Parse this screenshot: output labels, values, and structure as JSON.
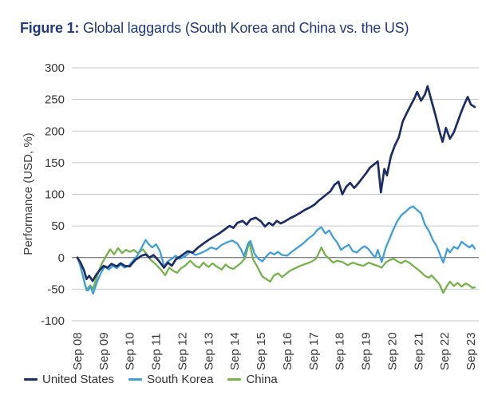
{
  "title": {
    "prefix": "Figure 1:",
    "text": "Global laggards (South Korea and China vs. the US)"
  },
  "chart_data": {
    "type": "line",
    "title": "Global laggards (South Korea and China vs. the US)",
    "xlabel": "",
    "ylabel": "Performance (USD, %)",
    "ylim": [
      -100,
      300
    ],
    "yticks": [
      300,
      250,
      200,
      150,
      100,
      50,
      0,
      -50,
      -100
    ],
    "grid": true,
    "zero_line": true,
    "legend_position": "bottom-left",
    "x_tick_rotation": 90,
    "x_unit": "years since Sep 2008",
    "categories": [
      "Sep 08",
      "Sep 09",
      "Sep 10",
      "Sep 11",
      "Sep 12",
      "Sep 13",
      "Sep 14",
      "Sep 15",
      "Sep 16",
      "Sep 17",
      "Sep 18",
      "Sep 19",
      "Sep 20",
      "Sep 21",
      "Sep 22",
      "Sep 23"
    ],
    "colors": {
      "grid": "#c3c8cd",
      "zero_line": "#53585d",
      "title": "#21397f",
      "tick_text": "#363636"
    },
    "series": [
      {
        "name": "United States",
        "color": "#1b2c67",
        "width": 2.7,
        "points": [
          [
            0,
            0
          ],
          [
            0.12,
            -8
          ],
          [
            0.25,
            -20
          ],
          [
            0.35,
            -34
          ],
          [
            0.45,
            -29
          ],
          [
            0.58,
            -37
          ],
          [
            0.72,
            -27
          ],
          [
            0.85,
            -20
          ],
          [
            1.0,
            -13
          ],
          [
            1.15,
            -16
          ],
          [
            1.3,
            -10
          ],
          [
            1.5,
            -14
          ],
          [
            1.65,
            -9
          ],
          [
            1.8,
            -13
          ],
          [
            2.0,
            -14
          ],
          [
            2.2,
            -4
          ],
          [
            2.45,
            3
          ],
          [
            2.6,
            5
          ],
          [
            2.75,
            0
          ],
          [
            2.9,
            4
          ],
          [
            3.1,
            -5
          ],
          [
            3.3,
            -16
          ],
          [
            3.45,
            -8
          ],
          [
            3.6,
            -13
          ],
          [
            3.75,
            -3
          ],
          [
            4.0,
            4
          ],
          [
            4.2,
            10
          ],
          [
            4.4,
            8
          ],
          [
            4.6,
            16
          ],
          [
            4.8,
            22
          ],
          [
            5.0,
            28
          ],
          [
            5.2,
            33
          ],
          [
            5.4,
            38
          ],
          [
            5.6,
            44
          ],
          [
            5.8,
            50
          ],
          [
            5.95,
            47
          ],
          [
            6.1,
            55
          ],
          [
            6.3,
            58
          ],
          [
            6.45,
            52
          ],
          [
            6.6,
            60
          ],
          [
            6.8,
            63
          ],
          [
            7.0,
            57
          ],
          [
            7.15,
            49
          ],
          [
            7.3,
            55
          ],
          [
            7.45,
            51
          ],
          [
            7.6,
            58
          ],
          [
            7.75,
            54
          ],
          [
            7.9,
            57
          ],
          [
            8.1,
            62
          ],
          [
            8.3,
            66
          ],
          [
            8.5,
            71
          ],
          [
            8.7,
            76
          ],
          [
            8.9,
            80
          ],
          [
            9.05,
            84
          ],
          [
            9.2,
            90
          ],
          [
            9.35,
            95
          ],
          [
            9.5,
            100
          ],
          [
            9.65,
            105
          ],
          [
            9.8,
            115
          ],
          [
            9.95,
            120
          ],
          [
            10.1,
            100
          ],
          [
            10.25,
            112
          ],
          [
            10.4,
            118
          ],
          [
            10.55,
            110
          ],
          [
            10.7,
            117
          ],
          [
            10.85,
            125
          ],
          [
            11.0,
            133
          ],
          [
            11.15,
            142
          ],
          [
            11.3,
            147
          ],
          [
            11.45,
            152
          ],
          [
            11.57,
            103
          ],
          [
            11.7,
            140
          ],
          [
            11.8,
            130
          ],
          [
            11.95,
            160
          ],
          [
            12.1,
            177
          ],
          [
            12.25,
            190
          ],
          [
            12.4,
            215
          ],
          [
            12.55,
            228
          ],
          [
            12.7,
            240
          ],
          [
            12.85,
            252
          ],
          [
            12.95,
            262
          ],
          [
            13.1,
            248
          ],
          [
            13.25,
            258
          ],
          [
            13.35,
            271
          ],
          [
            13.5,
            248
          ],
          [
            13.65,
            225
          ],
          [
            13.8,
            200
          ],
          [
            13.92,
            183
          ],
          [
            14.05,
            205
          ],
          [
            14.2,
            188
          ],
          [
            14.35,
            198
          ],
          [
            14.5,
            215
          ],
          [
            14.65,
            232
          ],
          [
            14.78,
            245
          ],
          [
            14.88,
            254
          ],
          [
            15.0,
            242
          ],
          [
            15.15,
            238
          ]
        ]
      },
      {
        "name": "South Korea",
        "color": "#3f9fdb",
        "width": 2.3,
        "points": [
          [
            0,
            0
          ],
          [
            0.1,
            -10
          ],
          [
            0.2,
            -28
          ],
          [
            0.3,
            -45
          ],
          [
            0.4,
            -52
          ],
          [
            0.5,
            -46
          ],
          [
            0.6,
            -57
          ],
          [
            0.75,
            -38
          ],
          [
            0.9,
            -24
          ],
          [
            1.05,
            -14
          ],
          [
            1.2,
            -19
          ],
          [
            1.35,
            -13
          ],
          [
            1.5,
            -17
          ],
          [
            1.65,
            -11
          ],
          [
            1.8,
            -16
          ],
          [
            1.95,
            -13
          ],
          [
            2.1,
            -6
          ],
          [
            2.3,
            4
          ],
          [
            2.5,
            20
          ],
          [
            2.6,
            28
          ],
          [
            2.7,
            22
          ],
          [
            2.85,
            16
          ],
          [
            3.0,
            21
          ],
          [
            3.15,
            10
          ],
          [
            3.3,
            -13
          ],
          [
            3.45,
            -6
          ],
          [
            3.6,
            -2
          ],
          [
            3.75,
            3
          ],
          [
            3.9,
            -2
          ],
          [
            4.1,
            2
          ],
          [
            4.3,
            9
          ],
          [
            4.5,
            4
          ],
          [
            4.7,
            7
          ],
          [
            4.9,
            11
          ],
          [
            5.1,
            16
          ],
          [
            5.3,
            13
          ],
          [
            5.5,
            20
          ],
          [
            5.7,
            24
          ],
          [
            5.9,
            27
          ],
          [
            6.1,
            22
          ],
          [
            6.25,
            12
          ],
          [
            6.35,
            2
          ],
          [
            6.5,
            22
          ],
          [
            6.6,
            26
          ],
          [
            6.75,
            6
          ],
          [
            6.9,
            -2
          ],
          [
            7.05,
            -6
          ],
          [
            7.2,
            2
          ],
          [
            7.35,
            8
          ],
          [
            7.5,
            5
          ],
          [
            7.65,
            9
          ],
          [
            7.8,
            4
          ],
          [
            8.0,
            3
          ],
          [
            8.2,
            10
          ],
          [
            8.4,
            16
          ],
          [
            8.6,
            22
          ],
          [
            8.8,
            30
          ],
          [
            9.0,
            36
          ],
          [
            9.15,
            44
          ],
          [
            9.3,
            48
          ],
          [
            9.45,
            38
          ],
          [
            9.6,
            43
          ],
          [
            9.75,
            32
          ],
          [
            9.9,
            24
          ],
          [
            10.05,
            12
          ],
          [
            10.2,
            17
          ],
          [
            10.35,
            20
          ],
          [
            10.5,
            10
          ],
          [
            10.65,
            8
          ],
          [
            10.8,
            14
          ],
          [
            10.95,
            18
          ],
          [
            11.1,
            13
          ],
          [
            11.25,
            5
          ],
          [
            11.35,
            0
          ],
          [
            11.45,
            12
          ],
          [
            11.6,
            -7
          ],
          [
            11.75,
            15
          ],
          [
            11.9,
            30
          ],
          [
            12.05,
            45
          ],
          [
            12.2,
            58
          ],
          [
            12.35,
            67
          ],
          [
            12.5,
            72
          ],
          [
            12.65,
            78
          ],
          [
            12.8,
            81
          ],
          [
            12.95,
            75
          ],
          [
            13.1,
            70
          ],
          [
            13.25,
            52
          ],
          [
            13.4,
            42
          ],
          [
            13.55,
            28
          ],
          [
            13.7,
            18
          ],
          [
            13.85,
            2
          ],
          [
            13.95,
            -8
          ],
          [
            14.1,
            14
          ],
          [
            14.2,
            8
          ],
          [
            14.35,
            17
          ],
          [
            14.5,
            14
          ],
          [
            14.65,
            25
          ],
          [
            14.8,
            20
          ],
          [
            14.95,
            16
          ],
          [
            15.05,
            20
          ],
          [
            15.15,
            14
          ]
        ]
      },
      {
        "name": "China",
        "color": "#76b24a",
        "width": 2.3,
        "points": [
          [
            0,
            0
          ],
          [
            0.1,
            -12
          ],
          [
            0.22,
            -30
          ],
          [
            0.35,
            -52
          ],
          [
            0.48,
            -44
          ],
          [
            0.6,
            -49
          ],
          [
            0.72,
            -33
          ],
          [
            0.85,
            -18
          ],
          [
            0.95,
            -8
          ],
          [
            1.1,
            3
          ],
          [
            1.25,
            13
          ],
          [
            1.4,
            5
          ],
          [
            1.55,
            15
          ],
          [
            1.7,
            7
          ],
          [
            1.85,
            12
          ],
          [
            2.0,
            9
          ],
          [
            2.15,
            12
          ],
          [
            2.3,
            7
          ],
          [
            2.5,
            13
          ],
          [
            2.65,
            5
          ],
          [
            2.8,
            -4
          ],
          [
            3.0,
            -11
          ],
          [
            3.2,
            -20
          ],
          [
            3.35,
            -28
          ],
          [
            3.5,
            -16
          ],
          [
            3.65,
            -21
          ],
          [
            3.8,
            -24
          ],
          [
            3.95,
            -17
          ],
          [
            4.1,
            -13
          ],
          [
            4.3,
            -5
          ],
          [
            4.5,
            -13
          ],
          [
            4.65,
            -16
          ],
          [
            4.8,
            -8
          ],
          [
            5.0,
            -15
          ],
          [
            5.15,
            -9
          ],
          [
            5.3,
            -14
          ],
          [
            5.5,
            -19
          ],
          [
            5.65,
            -11
          ],
          [
            5.8,
            -16
          ],
          [
            5.95,
            -18
          ],
          [
            6.1,
            -13
          ],
          [
            6.25,
            -8
          ],
          [
            6.4,
            0
          ],
          [
            6.55,
            25
          ],
          [
            6.7,
            -3
          ],
          [
            6.85,
            -14
          ],
          [
            7.05,
            -30
          ],
          [
            7.2,
            -34
          ],
          [
            7.35,
            -38
          ],
          [
            7.5,
            -28
          ],
          [
            7.65,
            -25
          ],
          [
            7.8,
            -31
          ],
          [
            7.95,
            -26
          ],
          [
            8.1,
            -21
          ],
          [
            8.3,
            -17
          ],
          [
            8.5,
            -13
          ],
          [
            8.7,
            -10
          ],
          [
            8.9,
            -7
          ],
          [
            9.1,
            -2
          ],
          [
            9.3,
            16
          ],
          [
            9.45,
            4
          ],
          [
            9.6,
            -2
          ],
          [
            9.75,
            -8
          ],
          [
            9.9,
            -5
          ],
          [
            10.1,
            -7
          ],
          [
            10.3,
            -12
          ],
          [
            10.5,
            -8
          ],
          [
            10.7,
            -11
          ],
          [
            10.9,
            -13
          ],
          [
            11.1,
            -8
          ],
          [
            11.3,
            -11
          ],
          [
            11.5,
            -14
          ],
          [
            11.6,
            -16
          ],
          [
            11.75,
            -8
          ],
          [
            11.9,
            -4
          ],
          [
            12.05,
            -2
          ],
          [
            12.2,
            -6
          ],
          [
            12.35,
            -9
          ],
          [
            12.5,
            -5
          ],
          [
            12.65,
            -8
          ],
          [
            12.8,
            -13
          ],
          [
            12.95,
            -18
          ],
          [
            13.1,
            -23
          ],
          [
            13.25,
            -29
          ],
          [
            13.4,
            -32
          ],
          [
            13.5,
            -28
          ],
          [
            13.65,
            -35
          ],
          [
            13.8,
            -42
          ],
          [
            13.95,
            -56
          ],
          [
            14.1,
            -44
          ],
          [
            14.2,
            -38
          ],
          [
            14.35,
            -45
          ],
          [
            14.5,
            -40
          ],
          [
            14.65,
            -46
          ],
          [
            14.8,
            -41
          ],
          [
            14.95,
            -44
          ],
          [
            15.05,
            -48
          ],
          [
            15.15,
            -47
          ]
        ]
      }
    ]
  }
}
